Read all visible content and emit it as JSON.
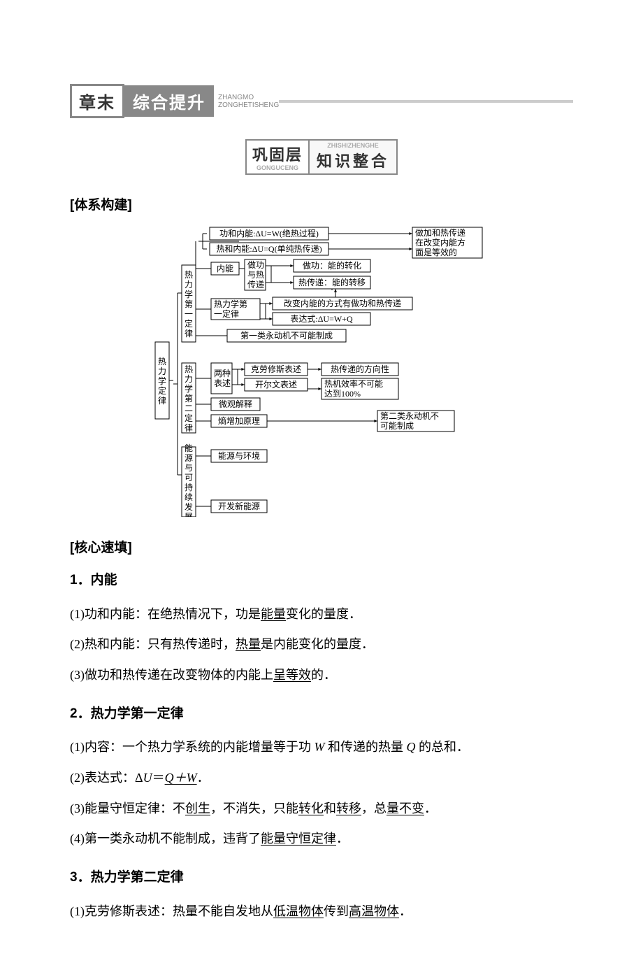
{
  "header": {
    "left": "章末",
    "right": "综合提升",
    "sub1": "ZHANGMO",
    "sub2": "ZONGHETISHENG"
  },
  "subbanner": {
    "left": "巩固层",
    "right": "知识整合",
    "pinyin_top": "ZHISHIZHENGHE",
    "pinyin_bottom": "GONGUCENG"
  },
  "section1": "[体系构建]",
  "section2": "[核心速填]",
  "diagram": {
    "root": "热力学定律",
    "b1": "热力学第一定律",
    "b2": "热力学第二定律",
    "b3": "能源与可持续发展",
    "n_work": "功和内能:ΔU=W(绝热过程)",
    "n_heat": "热和内能:ΔU=Q(单纯热传递)",
    "n_equiv": "做加和热传递在改变内能方面是等效的",
    "n_inner": "内能",
    "n_workheat": "做功与热传递",
    "n_dowork": "做功：能的转化",
    "n_transfer": "热传递：能的转移",
    "n_law1": "热力学第一定律",
    "n_change": "改变内能的方式有做功和热传递",
    "n_expr": "表达式:ΔU=W+Q",
    "n_pm1": "第一类永动机不可能制成",
    "n_two": "两种表述",
    "n_claus": "克劳修斯表述",
    "n_kelvin": "开尔文表述",
    "n_dir": "热传递的方向性",
    "n_eff": "热机效率不可能达到100%",
    "n_micro": "微观解释",
    "n_entropy": "熵增加原理",
    "n_pm2": "第二类永动机不可能制成",
    "n_env": "能源与环境",
    "n_new": "开发新能源",
    "box_stroke": "#000000",
    "text_color": "#000000",
    "font_size": 12
  },
  "content": {
    "h1": "1．内能",
    "p1a": "(1)功和内能：在绝热情况下，功是",
    "p1u": "能量",
    "p1b": "变化的量度．",
    "p2a": "(2)热和内能：只有热传递时，",
    "p2u": "热量",
    "p2b": "是内能变化的量度．",
    "p3a": "(3)做功和热传递在改变物体的内能上",
    "p3u": "呈",
    "p3c": "等效",
    "p3b": "的．",
    "h2": "2．热力学第一定律",
    "p4a": "(1)内容：一个热力学系统的内能增量等于功 ",
    "p4w": "W",
    "p4b": " 和传递的热量 ",
    "p4q": "Q",
    "p4c": " 的总和．",
    "p5a": "(2)表达式：Δ",
    "p5u": "U",
    "p5eq": "＝",
    "p5qw": "Q＋W",
    "p5b": "．",
    "p6a": "(3)能量守恒定律：不",
    "p6u1": "创生",
    "p6b": "，不消失，只能",
    "p6u2": "转化",
    "p6c": "和",
    "p6u3": "转移",
    "p6d": "，总",
    "p6u4": "量不变",
    "p6e": "．",
    "p7a": "(4)第一类永动机不能制成，违背了",
    "p7u": "能量守恒定律",
    "p7b": "．",
    "h3": "3．热力学第二定律",
    "p8a": "(1)克劳修斯表述：热量不能自发地从",
    "p8u1": "低温物体",
    "p8b": "传到",
    "p8u2": "高温物体",
    "p8c": "．"
  }
}
